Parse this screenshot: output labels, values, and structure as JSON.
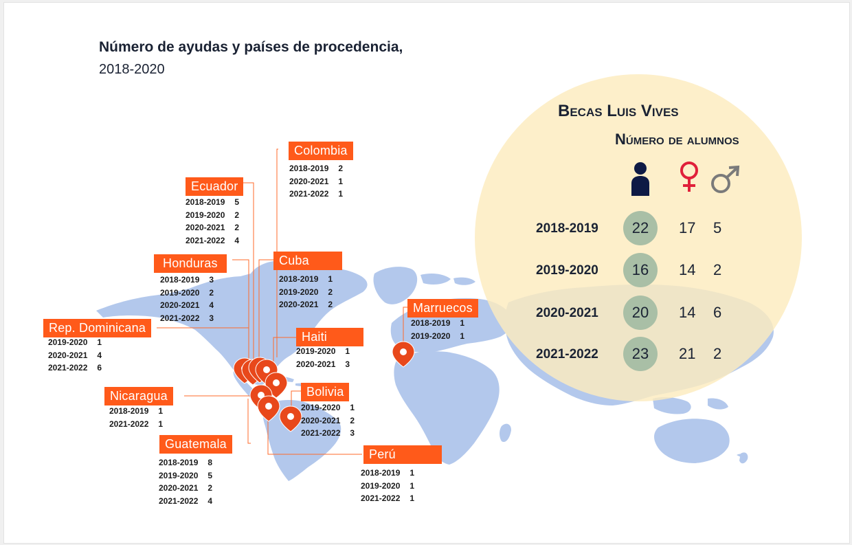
{
  "title_line1": "Número de ayudas y países de procedencia,",
  "title_line2": "2018-2020",
  "panel": {
    "title": "Becas Luis Vives",
    "subtitle": "Número de alumnos",
    "icons": [
      "person-icon",
      "female-symbol-icon",
      "male-symbol-icon"
    ],
    "colors": {
      "person": "#0e1a45",
      "female": "#e0203a",
      "male": "#7a7a7a",
      "total_circle": "#a9bfa6",
      "background": "#fcebbe"
    },
    "rows": [
      {
        "year": "2018-2019",
        "total": "22",
        "female": "17",
        "male": "5"
      },
      {
        "year": "2019-2020",
        "total": "16",
        "female": "14",
        "male": "2"
      },
      {
        "year": "2020-2021",
        "total": "20",
        "female": "14",
        "male": "6"
      },
      {
        "year": "2021-2022",
        "total": "23",
        "female": "21",
        "male": "2"
      }
    ]
  },
  "countries": {
    "colombia": {
      "name": "Colombia",
      "rows": [
        [
          "2018-2019",
          "2"
        ],
        [
          "2020-2021",
          "1"
        ],
        [
          "2021-2022",
          "1"
        ]
      ]
    },
    "ecuador": {
      "name": "Ecuador",
      "rows": [
        [
          "2018-2019",
          "5"
        ],
        [
          "2019-2020",
          "2"
        ],
        [
          "2020-2021",
          "2"
        ],
        [
          "2021-2022",
          "4"
        ]
      ]
    },
    "honduras": {
      "name": "Honduras",
      "rows": [
        [
          "2018-2019",
          "3"
        ],
        [
          "2019-2020",
          "2"
        ],
        [
          "2020-2021",
          "4"
        ],
        [
          "2021-2022",
          "3"
        ]
      ]
    },
    "cuba": {
      "name": "Cuba",
      "rows": [
        [
          "2018-2019",
          "1"
        ],
        [
          "2019-2020",
          "2"
        ],
        [
          "2020-2021",
          "2"
        ]
      ]
    },
    "marruecos": {
      "name": "Marruecos",
      "rows": [
        [
          "2018-2019",
          "1"
        ],
        [
          "2019-2020",
          "1"
        ]
      ]
    },
    "repdom": {
      "name": "Rep. Dominicana",
      "rows": [
        [
          "2019-2020",
          "1"
        ],
        [
          "2020-2021",
          "4"
        ],
        [
          "2021-2022",
          "6"
        ]
      ]
    },
    "haiti": {
      "name": "Haiti",
      "rows": [
        [
          "2019-2020",
          "1"
        ],
        [
          "2020-2021",
          "3"
        ]
      ]
    },
    "nicaragua": {
      "name": "Nicaragua",
      "rows": [
        [
          "2018-2019",
          "1"
        ],
        [
          "2021-2022",
          "1"
        ]
      ]
    },
    "bolivia": {
      "name": "Bolivia",
      "rows": [
        [
          "2019-2020",
          "1"
        ],
        [
          "2020-2021",
          "2"
        ],
        [
          "2021-2022",
          "3"
        ]
      ]
    },
    "guatemala": {
      "name": "Guatemala",
      "rows": [
        [
          "2018-2019",
          "8"
        ],
        [
          "2019-2020",
          "5"
        ],
        [
          "2020-2021",
          "2"
        ],
        [
          "2021-2022",
          "4"
        ]
      ]
    },
    "peru": {
      "name": "Perú",
      "rows": [
        [
          "2018-2019",
          "1"
        ],
        [
          "2019-2020",
          "1"
        ],
        [
          "2021-2022",
          "1"
        ]
      ]
    }
  },
  "map_colors": {
    "land": "#b3c8ec",
    "marker": "#e8481b",
    "leader_line": "#ff6a2a"
  }
}
